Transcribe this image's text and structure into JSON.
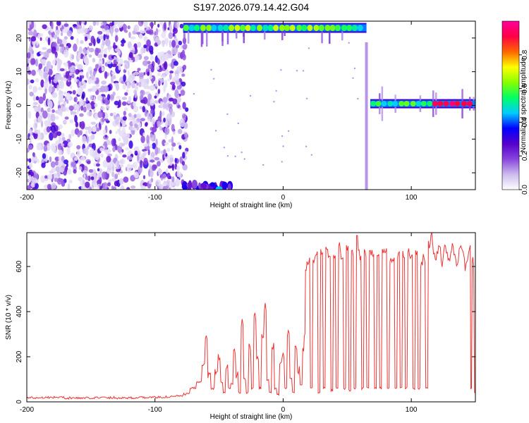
{
  "title": "S197.2026.079.14.42.G04",
  "chart_data": [
    {
      "type": "heatmap",
      "xlabel": "Height of straight line (km)",
      "ylabel": "Frequency (Hz)",
      "xlim": [
        -200,
        150
      ],
      "ylim": [
        -25,
        25
      ],
      "xticks": [
        -200,
        -100,
        0,
        100
      ],
      "yticks": [
        -20,
        -10,
        0,
        10,
        20
      ],
      "colorbar": {
        "label": "Normalized spectral amplitude",
        "range": [
          0,
          1
        ],
        "ticks": [
          0,
          0.2,
          0.4,
          0.6,
          0.8
        ],
        "colors": [
          "#ffffff",
          "#ccbbee",
          "#8844dd",
          "#5500cc",
          "#0000ff",
          "#00ccff",
          "#00ff66",
          "#88ff00",
          "#ffff00",
          "#ff6600",
          "#ff0044",
          "#ff0099"
        ]
      },
      "features": [
        {
          "description_ref": "noise",
          "x_range": [
            -200,
            -75
          ],
          "freq_range": [
            -25,
            25
          ],
          "level": 0.2
        },
        {
          "description_ref": "upper_band",
          "x_range": [
            -78,
            65
          ],
          "freq": 23,
          "level": 0.55
        },
        {
          "description_ref": "lower_band",
          "x_range": [
            -78,
            -40
          ],
          "freq": -24,
          "level": 0.3
        },
        {
          "description_ref": "zero_band",
          "x_range": [
            68,
            150
          ],
          "freq": 0.5,
          "level": 0.5
        }
      ]
    },
    {
      "type": "line",
      "xlabel": "Height of straight line (km)",
      "ylabel": "SNR (10 * v/v)",
      "xlim": [
        -200,
        150
      ],
      "ylim": [
        0,
        750
      ],
      "xticks": [
        -200,
        -100,
        0,
        100
      ],
      "yticks": [
        0,
        200,
        400,
        600
      ],
      "series": [
        {
          "color": "#ee3333",
          "x": [
            -200,
            -180,
            -160,
            -140,
            -120,
            -100,
            -90,
            -80,
            -75,
            -70,
            -65,
            -62,
            -60,
            -58,
            -55,
            -52,
            -50,
            -48,
            -46,
            -44,
            -42,
            -40,
            -38,
            -36,
            -34,
            -32,
            -30,
            -28,
            -26,
            -24,
            -22,
            -20,
            -18,
            -16,
            -14,
            -12,
            -10,
            -8,
            -6,
            -4,
            -2,
            0,
            2,
            4,
            6,
            8,
            10,
            12,
            14,
            16,
            17,
            18,
            20,
            22,
            24,
            26,
            28,
            30,
            32,
            34,
            36,
            38,
            40,
            42,
            44,
            46,
            48,
            50,
            52,
            54,
            56,
            58,
            60,
            62,
            64,
            66,
            68,
            70,
            72,
            74,
            76,
            78,
            80,
            82,
            84,
            86,
            88,
            90,
            92,
            94,
            96,
            98,
            100,
            102,
            104,
            106,
            108,
            110,
            112,
            114,
            116,
            118,
            120,
            122,
            124,
            126,
            128,
            130,
            132,
            134,
            136,
            138,
            140,
            142,
            144,
            146,
            147,
            148,
            150
          ],
          "y": [
            18,
            20,
            17,
            19,
            18,
            20,
            22,
            25,
            35,
            60,
            90,
            180,
            280,
            120,
            60,
            140,
            200,
            90,
            40,
            160,
            60,
            80,
            220,
            120,
            40,
            350,
            100,
            40,
            240,
            60,
            380,
            200,
            60,
            300,
            420,
            100,
            40,
            250,
            60,
            30,
            180,
            200,
            60,
            300,
            120,
            40,
            250,
            140,
            80,
            240,
            300,
            600,
            620,
            60,
            640,
            650,
            40,
            660,
            60,
            680,
            640,
            50,
            660,
            60,
            700,
            630,
            60,
            690,
            50,
            650,
            60,
            720,
            640,
            60,
            660,
            60,
            680,
            640,
            60,
            650,
            60,
            680,
            660,
            60,
            640,
            620,
            60,
            660,
            60,
            650,
            60,
            680,
            640,
            60,
            660,
            60,
            620,
            640,
            60,
            700,
            730,
            640,
            650,
            700,
            620,
            680,
            660,
            630,
            700,
            650,
            610,
            680,
            660,
            600,
            640,
            700,
            60,
            620,
            40
          ]
        }
      ]
    }
  ]
}
